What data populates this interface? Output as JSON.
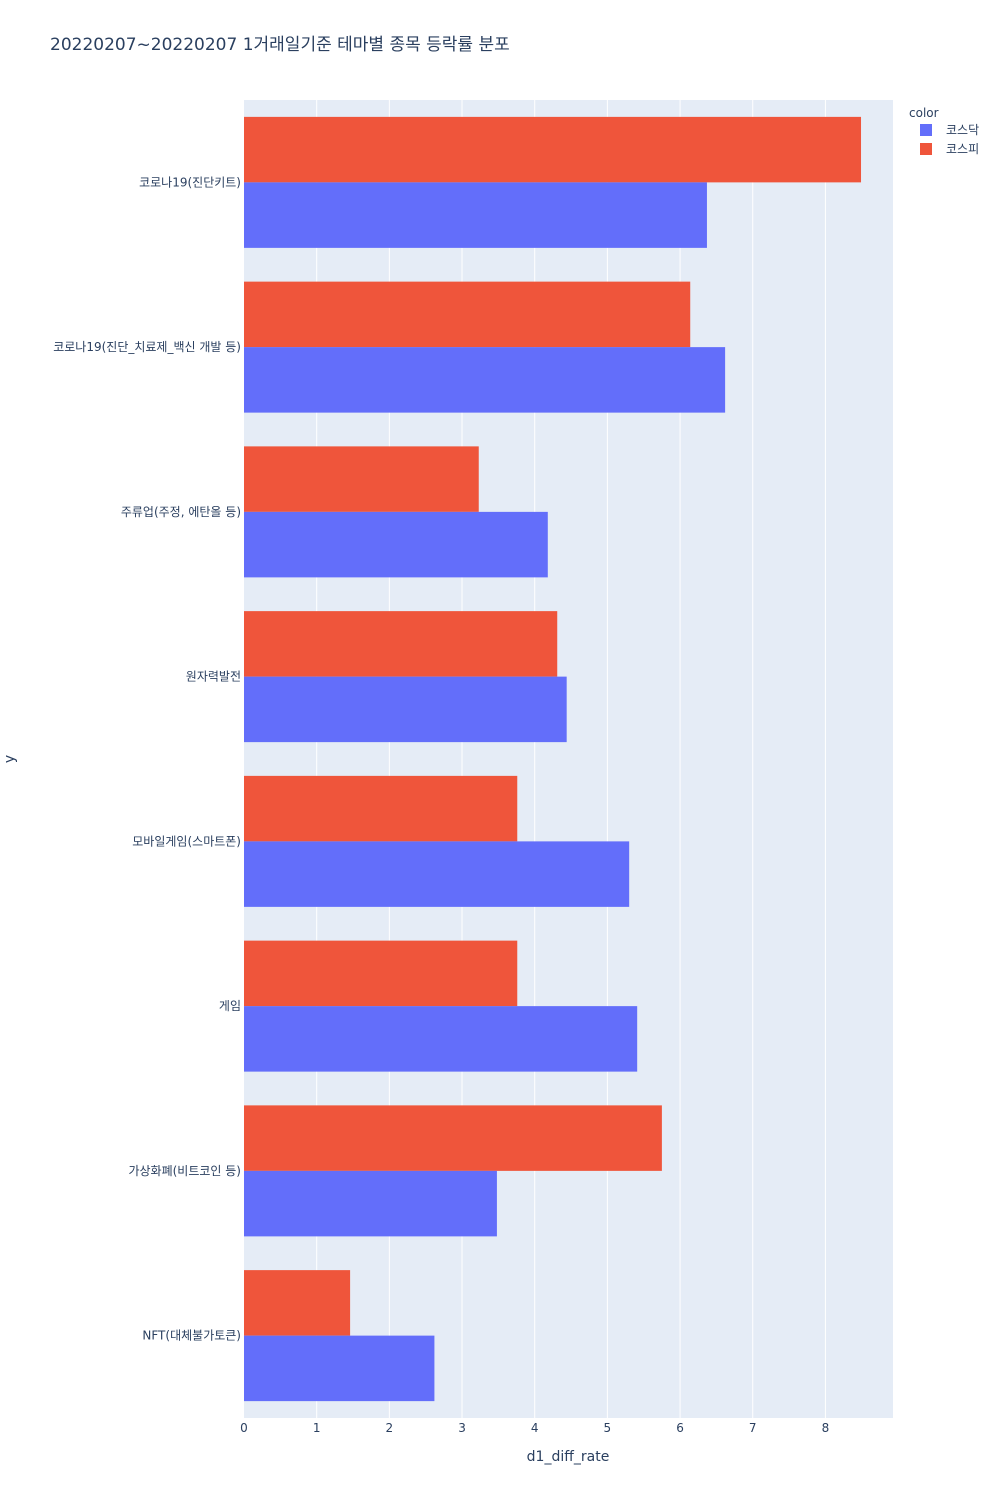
{
  "chart_data": {
    "type": "bar",
    "orientation": "horizontal",
    "title": "20220207~20220207 1거래일기준 테마별 종목 등락률 분포",
    "xlabel": "d1_diff_rate",
    "ylabel": "y",
    "xlim": [
      0,
      8.93
    ],
    "x_ticks": [
      "0",
      "1",
      "2",
      "3",
      "4",
      "5",
      "6",
      "7",
      "8"
    ],
    "grid": true,
    "legend_title": "color",
    "legend_position": "top-right",
    "categories": [
      "코로나19(진단키트)",
      "코로나19(진단_치료제_백신 개발 등)",
      "주류업(주정, 에탄올 등)",
      "원자력발전",
      "모바일게임(스마트폰)",
      "게임",
      "가상화폐(비트코인 등)",
      "NFT(대체불가토큰)"
    ],
    "series": [
      {
        "name": "코스닥",
        "color": "#636efa",
        "values": [
          6.37,
          6.62,
          4.18,
          4.44,
          5.3,
          5.41,
          3.48,
          2.62
        ]
      },
      {
        "name": "코스피",
        "color": "#ef553b",
        "values": [
          8.49,
          6.14,
          3.23,
          4.31,
          3.76,
          3.76,
          5.75,
          1.46
        ]
      }
    ],
    "plot_bg": "#e5ecf6",
    "grid_color": "#ffffff",
    "text_color": "#2a3f5f"
  }
}
